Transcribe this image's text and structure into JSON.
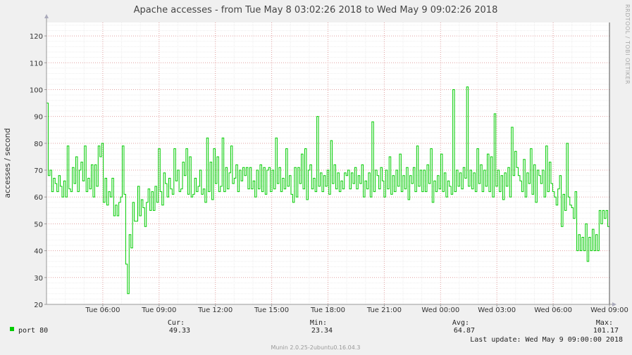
{
  "chart_data": {
    "type": "line",
    "title": "Apache accesses - from Tue May  8 03:02:26 2018 to Wed May  9 09:02:26 2018",
    "ylabel": "accesses / second",
    "side_label": "RRDTOOL / TOBI OETIKER",
    "ylim": [
      20,
      125
    ],
    "yticks": [
      20,
      30,
      40,
      50,
      60,
      70,
      80,
      90,
      100,
      110,
      120
    ],
    "xlim_hours": [
      0,
      30
    ],
    "xticks": [
      {
        "label": "Tue 06:00",
        "hour": 3
      },
      {
        "label": "Tue 09:00",
        "hour": 6
      },
      {
        "label": "Tue 12:00",
        "hour": 9
      },
      {
        "label": "Tue 15:00",
        "hour": 12
      },
      {
        "label": "Tue 18:00",
        "hour": 15
      },
      {
        "label": "Tue 21:00",
        "hour": 18
      },
      {
        "label": "Wed 00:00",
        "hour": 21
      },
      {
        "label": "Wed 03:00",
        "hour": 24
      },
      {
        "label": "Wed 06:00",
        "hour": 27
      },
      {
        "label": "Wed 09:00",
        "hour": 30
      }
    ],
    "grid": true,
    "series": [
      {
        "name": "port 80",
        "color": "#00cc00",
        "stats": {
          "cur_label": "Cur:",
          "cur": "49.33",
          "min_label": "Min:",
          "min": "23.34",
          "avg_label": "Avg:",
          "avg": "64.87",
          "max_label": "Max:",
          "max": "101.17"
        },
        "values": [
          95,
          68,
          70,
          62,
          67,
          65,
          62,
          68,
          64,
          60,
          66,
          60,
          79,
          63,
          62,
          71,
          65,
          75,
          62,
          70,
          73,
          66,
          79,
          62,
          67,
          63,
          72,
          60,
          72,
          64,
          79,
          75,
          80,
          58,
          67,
          57,
          62,
          60,
          67,
          53,
          57,
          53,
          58,
          60,
          79,
          61,
          35,
          24,
          46,
          41,
          58,
          51,
          51,
          64,
          53,
          59,
          56,
          49,
          58,
          63,
          55,
          62,
          55,
          64,
          58,
          78,
          62,
          57,
          69,
          65,
          60,
          67,
          63,
          61,
          78,
          66,
          70,
          62,
          63,
          73,
          68,
          78,
          61,
          75,
          60,
          61,
          67,
          62,
          64,
          70,
          61,
          63,
          58,
          82,
          62,
          73,
          59,
          78,
          65,
          75,
          62,
          64,
          82,
          62,
          71,
          63,
          69,
          79,
          65,
          67,
          72,
          62,
          70,
          66,
          71,
          68,
          71,
          63,
          71,
          63,
          66,
          60,
          70,
          63,
          72,
          62,
          71,
          61,
          70,
          71,
          62,
          70,
          63,
          82,
          65,
          71,
          62,
          67,
          63,
          78,
          64,
          68,
          61,
          58,
          71,
          60,
          71,
          65,
          76,
          63,
          78,
          59,
          70,
          72,
          63,
          67,
          62,
          90,
          64,
          69,
          62,
          68,
          64,
          70,
          61,
          81,
          65,
          72,
          63,
          69,
          62,
          66,
          63,
          69,
          68,
          70,
          63,
          69,
          65,
          71,
          63,
          68,
          65,
          72,
          60,
          66,
          63,
          69,
          60,
          88,
          62,
          70,
          68,
          63,
          71,
          66,
          60,
          70,
          63,
          75,
          61,
          68,
          62,
          70,
          64,
          76,
          62,
          68,
          63,
          71,
          59,
          68,
          65,
          71,
          62,
          79,
          64,
          70,
          62,
          70,
          62,
          72,
          65,
          78,
          58,
          66,
          62,
          68,
          63,
          76,
          62,
          69,
          60,
          66,
          64,
          61,
          100,
          62,
          70,
          64,
          69,
          63,
          71,
          67,
          101,
          64,
          70,
          63,
          69,
          62,
          78,
          65,
          72,
          62,
          70,
          64,
          76,
          62,
          75,
          60,
          91,
          64,
          70,
          62,
          68,
          59,
          69,
          64,
          71,
          60,
          86,
          68,
          77,
          71,
          68,
          66,
          62,
          74,
          60,
          69,
          65,
          78,
          61,
          72,
          58,
          70,
          68,
          65,
          70,
          60,
          79,
          62,
          73,
          65,
          62,
          60,
          57,
          63,
          68,
          49,
          61,
          55,
          80,
          60,
          57,
          56,
          52,
          62,
          40,
          46,
          40,
          45,
          40,
          50,
          36,
          45,
          40,
          48,
          40,
          46,
          40,
          55,
          50,
          55,
          52,
          55,
          49
        ]
      }
    ]
  },
  "legend": {
    "series_label": "port 80",
    "last_update": "Last update: Wed May  9 09:00:00 2018",
    "munin_version": "Munin 2.0.25-2ubuntu0.16.04.3"
  }
}
